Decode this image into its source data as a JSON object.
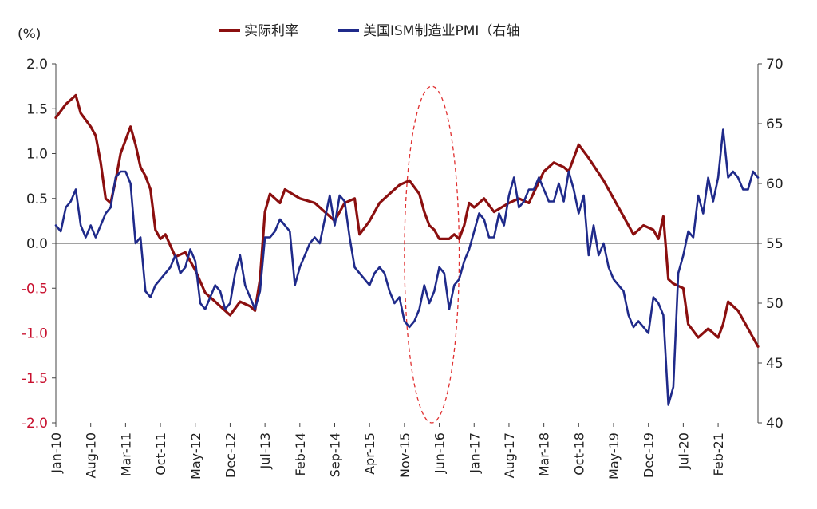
{
  "chart_data": {
    "type": "line",
    "unit_label": "(%)",
    "legend": [
      "实际利率",
      "美国ISM制造业PMI（右轴"
    ],
    "left_axis": {
      "min": -2.0,
      "max": 2.0,
      "ticks": [
        "2.0",
        "1.5",
        "1.0",
        "0.5",
        "0.0",
        "-0.5",
        "-1.0",
        "-1.5",
        "-2.0"
      ],
      "negative_color": "#c8102e"
    },
    "right_axis": {
      "min": 40,
      "max": 70,
      "ticks": [
        "70",
        "65",
        "60",
        "55",
        "50",
        "45",
        "40"
      ]
    },
    "x_axis": {
      "start": "Jan-10",
      "end": "Oct-21",
      "ticks": [
        "Jan-10",
        "Aug-10",
        "Mar-11",
        "Oct-11",
        "May-12",
        "Dec-12",
        "Jul-13",
        "Feb-14",
        "Sep-14",
        "Apr-15",
        "Nov-15",
        "Jun-16",
        "Jan-17",
        "Aug-17",
        "Mar-18",
        "Oct-18",
        "May-19",
        "Dec-19",
        "Jul-20",
        "Feb-21"
      ]
    },
    "series": [
      {
        "name": "实际利率",
        "axis": "left",
        "color": "#8b0f0f",
        "points": [
          [
            "Jan-10",
            1.4
          ],
          [
            "Mar-10",
            1.55
          ],
          [
            "May-10",
            1.65
          ],
          [
            "Jun-10",
            1.45
          ],
          [
            "Aug-10",
            1.3
          ],
          [
            "Sep-10",
            1.2
          ],
          [
            "Oct-10",
            0.9
          ],
          [
            "Nov-10",
            0.5
          ],
          [
            "Dec-10",
            0.45
          ],
          [
            "Jan-11",
            0.7
          ],
          [
            "Feb-11",
            1.0
          ],
          [
            "Apr-11",
            1.3
          ],
          [
            "May-11",
            1.1
          ],
          [
            "Jun-11",
            0.85
          ],
          [
            "Jul-11",
            0.75
          ],
          [
            "Aug-11",
            0.6
          ],
          [
            "Sep-11",
            0.15
          ],
          [
            "Oct-11",
            0.05
          ],
          [
            "Nov-11",
            0.1
          ],
          [
            "Jan-12",
            -0.15
          ],
          [
            "Mar-12",
            -0.1
          ],
          [
            "May-12",
            -0.3
          ],
          [
            "Jul-12",
            -0.55
          ],
          [
            "Sep-12",
            -0.65
          ],
          [
            "Nov-12",
            -0.75
          ],
          [
            "Dec-12",
            -0.8
          ],
          [
            "Feb-13",
            -0.65
          ],
          [
            "Apr-13",
            -0.7
          ],
          [
            "May-13",
            -0.75
          ],
          [
            "Jun-13",
            -0.4
          ],
          [
            "Jul-13",
            0.35
          ],
          [
            "Aug-13",
            0.55
          ],
          [
            "Oct-13",
            0.45
          ],
          [
            "Nov-13",
            0.6
          ],
          [
            "Feb-14",
            0.5
          ],
          [
            "May-14",
            0.45
          ],
          [
            "Jul-14",
            0.35
          ],
          [
            "Sep-14",
            0.25
          ],
          [
            "Nov-14",
            0.45
          ],
          [
            "Jan-15",
            0.5
          ],
          [
            "Feb-15",
            0.1
          ],
          [
            "Apr-15",
            0.25
          ],
          [
            "Jun-15",
            0.45
          ],
          [
            "Aug-15",
            0.55
          ],
          [
            "Oct-15",
            0.65
          ],
          [
            "Dec-15",
            0.7
          ],
          [
            "Feb-16",
            0.55
          ],
          [
            "Mar-16",
            0.35
          ],
          [
            "Apr-16",
            0.2
          ],
          [
            "May-16",
            0.15
          ],
          [
            "Jun-16",
            0.05
          ],
          [
            "Aug-16",
            0.05
          ],
          [
            "Sep-16",
            0.1
          ],
          [
            "Oct-16",
            0.05
          ],
          [
            "Nov-16",
            0.2
          ],
          [
            "Dec-16",
            0.45
          ],
          [
            "Jan-17",
            0.4
          ],
          [
            "Mar-17",
            0.5
          ],
          [
            "May-17",
            0.35
          ],
          [
            "Aug-17",
            0.45
          ],
          [
            "Oct-17",
            0.5
          ],
          [
            "Dec-17",
            0.45
          ],
          [
            "Mar-18",
            0.8
          ],
          [
            "May-18",
            0.9
          ],
          [
            "Jul-18",
            0.85
          ],
          [
            "Aug-18",
            0.8
          ],
          [
            "Oct-18",
            1.1
          ],
          [
            "Dec-18",
            0.95
          ],
          [
            "Mar-19",
            0.7
          ],
          [
            "May-19",
            0.5
          ],
          [
            "Jul-19",
            0.3
          ],
          [
            "Sep-19",
            0.1
          ],
          [
            "Nov-19",
            0.2
          ],
          [
            "Jan-20",
            0.15
          ],
          [
            "Feb-20",
            0.05
          ],
          [
            "Mar-20",
            0.3
          ],
          [
            "Apr-20",
            -0.4
          ],
          [
            "May-20",
            -0.45
          ],
          [
            "Jul-20",
            -0.5
          ],
          [
            "Aug-20",
            -0.9
          ],
          [
            "Oct-20",
            -1.05
          ],
          [
            "Dec-20",
            -0.95
          ],
          [
            "Feb-21",
            -1.05
          ],
          [
            "Mar-21",
            -0.9
          ],
          [
            "Apr-21",
            -0.65
          ],
          [
            "Jun-21",
            -0.75
          ],
          [
            "Aug-21",
            -0.95
          ],
          [
            "Oct-21",
            -1.15
          ]
        ]
      },
      {
        "name": "美国ISM制造业PMI（右轴",
        "axis": "right",
        "color": "#1f2a8a",
        "points": [
          [
            "Jan-10",
            56.5
          ],
          [
            "Feb-10",
            56.0
          ],
          [
            "Mar-10",
            58.0
          ],
          [
            "Apr-10",
            58.5
          ],
          [
            "May-10",
            59.5
          ],
          [
            "Jun-10",
            56.5
          ],
          [
            "Jul-10",
            55.5
          ],
          [
            "Aug-10",
            56.5
          ],
          [
            "Sep-10",
            55.5
          ],
          [
            "Oct-10",
            56.5
          ],
          [
            "Nov-10",
            57.5
          ],
          [
            "Dec-10",
            58.0
          ],
          [
            "Jan-11",
            60.5
          ],
          [
            "Feb-11",
            61.0
          ],
          [
            "Mar-11",
            61.0
          ],
          [
            "Apr-11",
            60.0
          ],
          [
            "May-11",
            55.0
          ],
          [
            "Jun-11",
            55.5
          ],
          [
            "Jul-11",
            51.0
          ],
          [
            "Aug-11",
            50.5
          ],
          [
            "Sep-11",
            51.5
          ],
          [
            "Oct-11",
            52.0
          ],
          [
            "Nov-11",
            52.5
          ],
          [
            "Dec-11",
            53.0
          ],
          [
            "Jan-12",
            54.0
          ],
          [
            "Feb-12",
            52.5
          ],
          [
            "Mar-12",
            53.0
          ],
          [
            "Apr-12",
            54.5
          ],
          [
            "May-12",
            53.5
          ],
          [
            "Jun-12",
            50.0
          ],
          [
            "Jul-12",
            49.5
          ],
          [
            "Aug-12",
            50.5
          ],
          [
            "Sep-12",
            51.5
          ],
          [
            "Oct-12",
            51.0
          ],
          [
            "Nov-12",
            49.5
          ],
          [
            "Dec-12",
            50.0
          ],
          [
            "Jan-13",
            52.5
          ],
          [
            "Feb-13",
            54.0
          ],
          [
            "Mar-13",
            51.5
          ],
          [
            "Apr-13",
            50.5
          ],
          [
            "May-13",
            49.5
          ],
          [
            "Jun-13",
            51.0
          ],
          [
            "Jul-13",
            55.5
          ],
          [
            "Aug-13",
            55.5
          ],
          [
            "Sep-13",
            56.0
          ],
          [
            "Oct-13",
            57.0
          ],
          [
            "Nov-13",
            56.5
          ],
          [
            "Dec-13",
            56.0
          ],
          [
            "Jan-14",
            51.5
          ],
          [
            "Feb-14",
            53.0
          ],
          [
            "Mar-14",
            54.0
          ],
          [
            "Apr-14",
            55.0
          ],
          [
            "May-14",
            55.5
          ],
          [
            "Jun-14",
            55.0
          ],
          [
            "Jul-14",
            57.0
          ],
          [
            "Aug-14",
            59.0
          ],
          [
            "Sep-14",
            56.5
          ],
          [
            "Oct-14",
            59.0
          ],
          [
            "Nov-14",
            58.5
          ],
          [
            "Dec-14",
            55.5
          ],
          [
            "Jan-15",
            53.0
          ],
          [
            "Feb-15",
            52.5
          ],
          [
            "Mar-15",
            52.0
          ],
          [
            "Apr-15",
            51.5
          ],
          [
            "May-15",
            52.5
          ],
          [
            "Jun-15",
            53.0
          ],
          [
            "Jul-15",
            52.5
          ],
          [
            "Aug-15",
            51.0
          ],
          [
            "Sep-15",
            50.0
          ],
          [
            "Oct-15",
            50.5
          ],
          [
            "Nov-15",
            48.5
          ],
          [
            "Dec-15",
            48.0
          ],
          [
            "Jan-16",
            48.5
          ],
          [
            "Feb-16",
            49.5
          ],
          [
            "Mar-16",
            51.5
          ],
          [
            "Apr-16",
            50.0
          ],
          [
            "May-16",
            51.0
          ],
          [
            "Jun-16",
            53.0
          ],
          [
            "Jul-16",
            52.5
          ],
          [
            "Aug-16",
            49.5
          ],
          [
            "Sep-16",
            51.5
          ],
          [
            "Oct-16",
            52.0
          ],
          [
            "Nov-16",
            53.5
          ],
          [
            "Dec-16",
            54.5
          ],
          [
            "Jan-17",
            56.0
          ],
          [
            "Feb-17",
            57.5
          ],
          [
            "Mar-17",
            57.0
          ],
          [
            "Apr-17",
            55.5
          ],
          [
            "May-17",
            55.5
          ],
          [
            "Jun-17",
            57.5
          ],
          [
            "Jul-17",
            56.5
          ],
          [
            "Aug-17",
            59.0
          ],
          [
            "Sep-17",
            60.5
          ],
          [
            "Oct-17",
            58.0
          ],
          [
            "Nov-17",
            58.5
          ],
          [
            "Dec-17",
            59.5
          ],
          [
            "Jan-18",
            59.5
          ],
          [
            "Feb-18",
            60.5
          ],
          [
            "Mar-18",
            59.5
          ],
          [
            "Apr-18",
            58.5
          ],
          [
            "May-18",
            58.5
          ],
          [
            "Jun-18",
            60.0
          ],
          [
            "Jul-18",
            58.5
          ],
          [
            "Aug-18",
            61.0
          ],
          [
            "Sep-18",
            59.5
          ],
          [
            "Oct-18",
            57.5
          ],
          [
            "Nov-18",
            59.0
          ],
          [
            "Dec-18",
            54.0
          ],
          [
            "Jan-19",
            56.5
          ],
          [
            "Feb-19",
            54.0
          ],
          [
            "Mar-19",
            55.0
          ],
          [
            "Apr-19",
            53.0
          ],
          [
            "May-19",
            52.0
          ],
          [
            "Jun-19",
            51.5
          ],
          [
            "Jul-19",
            51.0
          ],
          [
            "Aug-19",
            49.0
          ],
          [
            "Sep-19",
            48.0
          ],
          [
            "Oct-19",
            48.5
          ],
          [
            "Nov-19",
            48.0
          ],
          [
            "Dec-19",
            47.5
          ],
          [
            "Jan-20",
            50.5
          ],
          [
            "Feb-20",
            50.0
          ],
          [
            "Mar-20",
            49.0
          ],
          [
            "Apr-20",
            41.5
          ],
          [
            "May-20",
            43.0
          ],
          [
            "Jun-20",
            52.5
          ],
          [
            "Jul-20",
            54.0
          ],
          [
            "Aug-20",
            56.0
          ],
          [
            "Sep-20",
            55.5
          ],
          [
            "Oct-20",
            59.0
          ],
          [
            "Nov-20",
            57.5
          ],
          [
            "Dec-20",
            60.5
          ],
          [
            "Jan-21",
            58.5
          ],
          [
            "Feb-21",
            60.5
          ],
          [
            "Mar-21",
            64.5
          ],
          [
            "Apr-21",
            60.5
          ],
          [
            "May-21",
            61.0
          ],
          [
            "Jun-21",
            60.5
          ],
          [
            "Jul-21",
            59.5
          ],
          [
            "Aug-21",
            59.5
          ],
          [
            "Sep-21",
            61.0
          ],
          [
            "Oct-21",
            60.5
          ]
        ]
      }
    ],
    "annotations": [
      {
        "type": "dashed-ellipse",
        "color": "#e03030",
        "x_from": "Nov-15",
        "x_to": "Oct-16",
        "y_from_left": -2.0,
        "y_to_left": 1.75
      }
    ],
    "grid": false,
    "legend_position": "top-center"
  }
}
